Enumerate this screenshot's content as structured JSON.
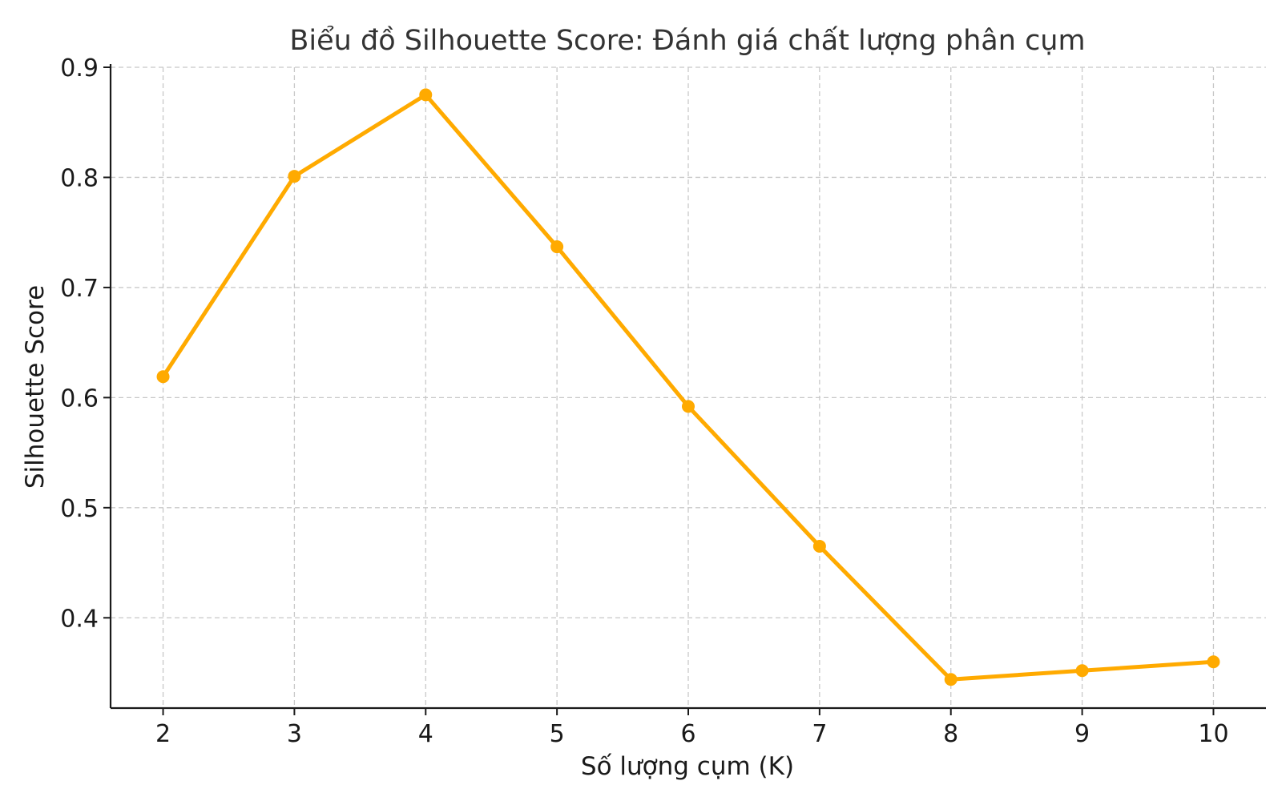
{
  "chart_data": {
    "type": "line",
    "title": "Biểu đồ Silhouette Score: Đánh giá chất lượng phân cụm",
    "xlabel": "Số lượng cụm (K)",
    "ylabel": "Silhouette Score",
    "x": [
      2,
      3,
      4,
      5,
      6,
      7,
      8,
      9,
      10
    ],
    "x_tick_labels": [
      "2",
      "3",
      "4",
      "5",
      "6",
      "7",
      "8",
      "9",
      "10"
    ],
    "y_ticks": [
      0.4,
      0.5,
      0.6,
      0.7,
      0.8,
      0.9
    ],
    "y_tick_labels": [
      "0.4",
      "0.5",
      "0.6",
      "0.7",
      "0.8",
      "0.9"
    ],
    "xlim": [
      1.6,
      10.4
    ],
    "ylim": [
      0.318,
      0.9
    ],
    "grid": true,
    "series": [
      {
        "values": [
          0.619,
          0.801,
          0.875,
          0.737,
          0.592,
          0.465,
          0.344,
          0.352,
          0.36
        ],
        "color": "#FFAA00",
        "marker": "circle"
      }
    ]
  }
}
